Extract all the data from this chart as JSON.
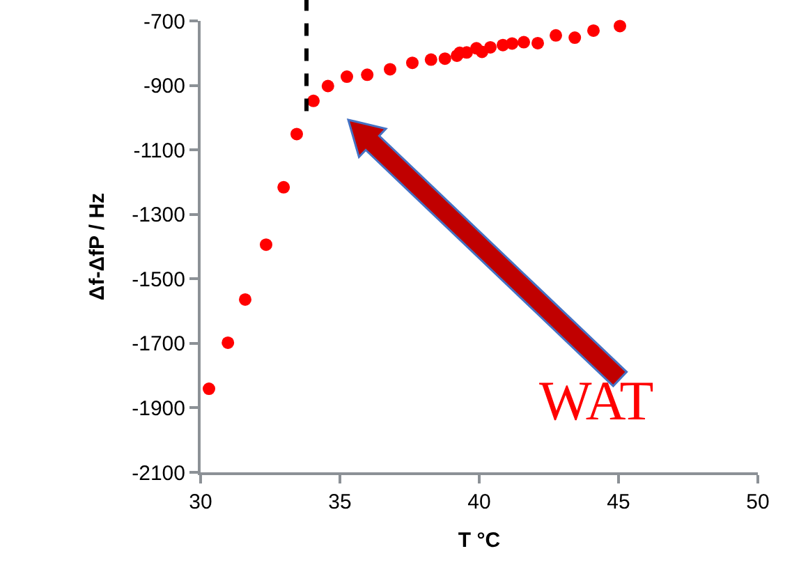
{
  "chart_data": {
    "type": "scatter",
    "xlabel": "T °C",
    "ylabel": "Δf-ΔfP / Hz",
    "x": [
      30.3,
      30.98,
      31.6,
      32.35,
      32.98,
      33.45,
      34.05,
      34.57,
      35.25,
      35.98,
      36.8,
      37.6,
      38.27,
      38.77,
      39.2,
      39.3,
      39.55,
      39.9,
      40.1,
      40.4,
      40.85,
      41.18,
      41.6,
      42.1,
      42.75,
      43.43,
      44.1,
      45.05
    ],
    "series": [
      {
        "color": "#ff0000",
        "values": [
          -1841,
          -1698,
          -1564,
          -1394,
          -1216,
          -1051,
          -948,
          -902,
          -873,
          -867,
          -850,
          -830,
          -820,
          -817,
          -808,
          -799,
          -798,
          -785,
          -796,
          -782,
          -775,
          -770,
          -766,
          -769,
          -745,
          -752,
          -730,
          -716
        ]
      }
    ],
    "xlim": [
      30,
      50
    ],
    "xticks": [
      30,
      35,
      40,
      45,
      50
    ],
    "ylim": [
      -2100,
      -700
    ],
    "yticks": [
      -2100,
      -1900,
      -1700,
      -1500,
      -1300,
      -1100,
      -900,
      -700
    ],
    "marker": "circle",
    "ref_lines": [
      {
        "axis": "x",
        "value": 33.8,
        "color": "#000000",
        "line_style": "dashed"
      }
    ],
    "annotations": [
      "WAT"
    ]
  }
}
